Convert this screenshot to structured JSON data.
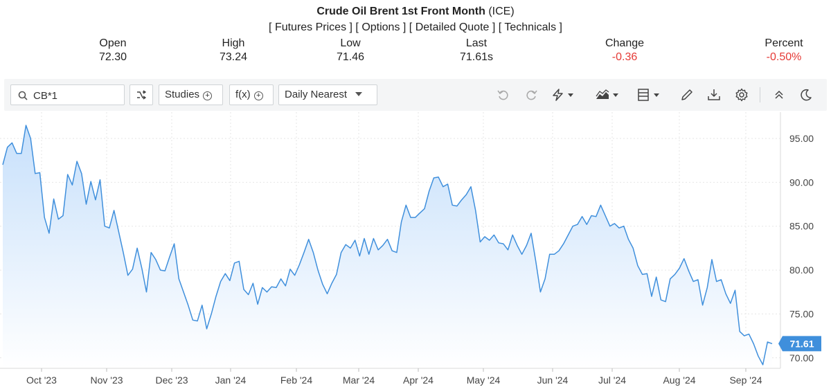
{
  "header": {
    "title": "Crude Oil Brent 1st Front Month",
    "exchange": "(ICE)",
    "links": [
      "Futures Prices",
      "Options",
      "Detailed Quote",
      "Technicals"
    ]
  },
  "stats": [
    {
      "label": "Open",
      "value": "72.30",
      "negative": false
    },
    {
      "label": "High",
      "value": "73.24",
      "negative": false
    },
    {
      "label": "Low",
      "value": "71.46",
      "negative": false
    },
    {
      "label": "Last",
      "value": "71.61s",
      "negative": false
    },
    {
      "label": "Change",
      "value": "-0.36",
      "negative": true
    },
    {
      "label": "Percent",
      "value": "-0.50%",
      "negative": true
    }
  ],
  "toolbar": {
    "search_value": "CB*1",
    "studies_label": "Studies",
    "fx_label": "f(x)",
    "period_label": "Daily Nearest",
    "icons": [
      "search-icon",
      "swap-icon",
      "plus-circle-icon",
      "caret-down-icon",
      "undo-icon",
      "redo-icon",
      "lightning-icon",
      "area-chart-icon",
      "template-icon",
      "pencil-icon",
      "download-icon",
      "gear-icon",
      "collapse-icon",
      "moon-icon"
    ]
  },
  "colors": {
    "line": "#3f8fdc",
    "fill_top": "#c7e0fb",
    "fill_bottom": "#ffffff",
    "negative": "#e53935",
    "last_badge": "#3f8fdc"
  },
  "chart_data": {
    "type": "area",
    "last_value_label": "71.61",
    "y_ticks": [
      "95.00",
      "90.00",
      "85.00",
      "80.00",
      "75.00",
      "70.00"
    ],
    "ylim": [
      68.8,
      98.0
    ],
    "x_ticks": [
      "Oct '23",
      "Nov '23",
      "Dec '23",
      "Jan '24",
      "Feb '24",
      "Mar '24",
      "Apr '24",
      "May '24",
      "Jun '24",
      "Jul '24",
      "Aug '24",
      "Sep '24"
    ],
    "grid": true,
    "series": [
      {
        "values": [
          92.0,
          94.0,
          94.5,
          93.3,
          93.3,
          96.5,
          95.0,
          91.0,
          91.1,
          86.0,
          84.2,
          88.1,
          85.8,
          86.2,
          90.9,
          89.7,
          92.4,
          91.0,
          87.5,
          90.1,
          88.0,
          90.3,
          85.0,
          84.8,
          86.8,
          84.4,
          82.0,
          79.4,
          80.1,
          82.5,
          80.2,
          77.5,
          82.0,
          81.2,
          80.0,
          79.9,
          81.5,
          83.0,
          79.0,
          77.5,
          76.0,
          74.3,
          74.2,
          76.0,
          73.3,
          75.0,
          77.0,
          78.7,
          79.6,
          78.8,
          80.8,
          81.0,
          77.8,
          77.2,
          78.5,
          76.1,
          78.0,
          77.5,
          78.1,
          78.0,
          79.0,
          78.2,
          80.1,
          79.4,
          80.6,
          82.0,
          83.5,
          82.0,
          80.0,
          78.4,
          77.3,
          78.5,
          79.5,
          82.0,
          82.9,
          82.5,
          83.4,
          81.6,
          83.6,
          81.8,
          83.6,
          82.3,
          82.8,
          83.5,
          82.2,
          82.0,
          85.5,
          87.4,
          86.0,
          86.0,
          86.5,
          87.0,
          89.0,
          90.5,
          90.6,
          89.5,
          89.8,
          87.4,
          87.3,
          88.0,
          88.6,
          89.5,
          86.8,
          83.2,
          83.8,
          83.4,
          84.0,
          83.1,
          83.0,
          82.3,
          84.0,
          82.8,
          81.8,
          82.8,
          84.2,
          81.0,
          77.5,
          79.0,
          81.8,
          81.8,
          82.2,
          83.0,
          84.0,
          85.0,
          85.2,
          86.1,
          85.2,
          86.2,
          86.1,
          87.4,
          86.2,
          85.0,
          85.3,
          84.8,
          85.0,
          83.5,
          82.5,
          80.5,
          79.5,
          79.6,
          77.0,
          79.2,
          76.6,
          76.4,
          79.0,
          79.5,
          80.2,
          81.3,
          79.9,
          78.7,
          78.9,
          76.0,
          78.0,
          81.2,
          78.7,
          78.9,
          77.3,
          76.2,
          77.7,
          73.0,
          72.5,
          72.7,
          71.6,
          70.2,
          69.2,
          71.8,
          71.61
        ]
      }
    ]
  }
}
